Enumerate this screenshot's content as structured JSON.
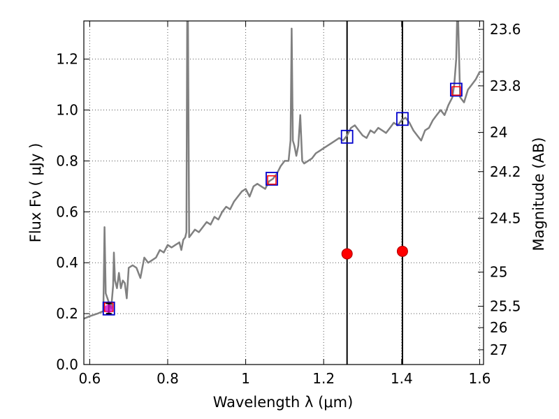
{
  "chart_data": {
    "type": "line",
    "title": "",
    "xlabel": "Wavelength  λ (μm)",
    "ylabel": "Flux  Fν  ( μJy )",
    "ylabel_right": "Magnitude (AB)",
    "xlim": [
      0.585,
      1.61
    ],
    "ylim": [
      0.0,
      1.35
    ],
    "grid": true,
    "x_ticks": [
      {
        "value": 0.6,
        "label": "0.6"
      },
      {
        "value": 0.8,
        "label": "0.8"
      },
      {
        "value": 1.0,
        "label": "1"
      },
      {
        "value": 1.2,
        "label": "1.2"
      },
      {
        "value": 1.4,
        "label": "1.4"
      },
      {
        "value": 1.6,
        "label": "1.6"
      }
    ],
    "y_ticks": [
      {
        "value": 0.0,
        "label": "0.0"
      },
      {
        "value": 0.2,
        "label": "0.2"
      },
      {
        "value": 0.4,
        "label": "0.4"
      },
      {
        "value": 0.6,
        "label": "0.6"
      },
      {
        "value": 0.8,
        "label": "0.8"
      },
      {
        "value": 1.0,
        "label": "1.0"
      },
      {
        "value": 1.2,
        "label": "1.2"
      }
    ],
    "right_ticks": [
      {
        "flux": 1.317,
        "label": "23.6"
      },
      {
        "flux": 1.095,
        "label": "23.8"
      },
      {
        "flux": 0.912,
        "label": "24"
      },
      {
        "flux": 0.758,
        "label": "24.2"
      },
      {
        "flux": 0.575,
        "label": "24.5"
      },
      {
        "flux": 0.363,
        "label": "25"
      },
      {
        "flux": 0.229,
        "label": "25.5"
      },
      {
        "flux": 0.145,
        "label": "26"
      },
      {
        "flux": 0.058,
        "label": "27"
      }
    ],
    "vertical_lines": [
      1.26,
      1.402
    ],
    "series": [
      {
        "kind": "spectrum",
        "color": "#808080",
        "points": [
          [
            0.585,
            0.18
          ],
          [
            0.6,
            0.19
          ],
          [
            0.62,
            0.2
          ],
          [
            0.635,
            0.21
          ],
          [
            0.638,
            0.54
          ],
          [
            0.641,
            0.28
          ],
          [
            0.65,
            0.24
          ],
          [
            0.655,
            0.22
          ],
          [
            0.66,
            0.31
          ],
          [
            0.662,
            0.44
          ],
          [
            0.665,
            0.33
          ],
          [
            0.67,
            0.3
          ],
          [
            0.675,
            0.36
          ],
          [
            0.68,
            0.3
          ],
          [
            0.685,
            0.33
          ],
          [
            0.69,
            0.32
          ],
          [
            0.695,
            0.26
          ],
          [
            0.7,
            0.38
          ],
          [
            0.71,
            0.39
          ],
          [
            0.72,
            0.38
          ],
          [
            0.73,
            0.34
          ],
          [
            0.74,
            0.42
          ],
          [
            0.75,
            0.4
          ],
          [
            0.76,
            0.41
          ],
          [
            0.77,
            0.42
          ],
          [
            0.78,
            0.45
          ],
          [
            0.79,
            0.44
          ],
          [
            0.8,
            0.47
          ],
          [
            0.81,
            0.46
          ],
          [
            0.82,
            0.47
          ],
          [
            0.83,
            0.48
          ],
          [
            0.835,
            0.45
          ],
          [
            0.84,
            0.49
          ],
          [
            0.845,
            0.5
          ],
          [
            0.848,
            0.52
          ],
          [
            0.85,
            1.35
          ],
          [
            0.852,
            1.35
          ],
          [
            0.855,
            0.5
          ],
          [
            0.86,
            0.51
          ],
          [
            0.87,
            0.53
          ],
          [
            0.88,
            0.52
          ],
          [
            0.89,
            0.54
          ],
          [
            0.9,
            0.56
          ],
          [
            0.91,
            0.55
          ],
          [
            0.92,
            0.58
          ],
          [
            0.93,
            0.57
          ],
          [
            0.94,
            0.6
          ],
          [
            0.95,
            0.62
          ],
          [
            0.96,
            0.61
          ],
          [
            0.97,
            0.64
          ],
          [
            0.98,
            0.66
          ],
          [
            0.99,
            0.68
          ],
          [
            1.0,
            0.69
          ],
          [
            1.01,
            0.66
          ],
          [
            1.02,
            0.7
          ],
          [
            1.03,
            0.71
          ],
          [
            1.04,
            0.7
          ],
          [
            1.05,
            0.69
          ],
          [
            1.06,
            0.72
          ],
          [
            1.07,
            0.73
          ],
          [
            1.08,
            0.75
          ],
          [
            1.09,
            0.78
          ],
          [
            1.1,
            0.8
          ],
          [
            1.11,
            0.8
          ],
          [
            1.115,
            0.88
          ],
          [
            1.118,
            1.32
          ],
          [
            1.121,
            0.88
          ],
          [
            1.125,
            0.86
          ],
          [
            1.13,
            0.82
          ],
          [
            1.135,
            0.86
          ],
          [
            1.14,
            0.98
          ],
          [
            1.145,
            0.8
          ],
          [
            1.15,
            0.79
          ],
          [
            1.16,
            0.8
          ],
          [
            1.17,
            0.81
          ],
          [
            1.18,
            0.83
          ],
          [
            1.19,
            0.84
          ],
          [
            1.2,
            0.85
          ],
          [
            1.21,
            0.86
          ],
          [
            1.22,
            0.87
          ],
          [
            1.23,
            0.88
          ],
          [
            1.24,
            0.89
          ],
          [
            1.25,
            0.88
          ],
          [
            1.26,
            0.9
          ],
          [
            1.27,
            0.93
          ],
          [
            1.28,
            0.94
          ],
          [
            1.29,
            0.92
          ],
          [
            1.3,
            0.9
          ],
          [
            1.31,
            0.89
          ],
          [
            1.32,
            0.92
          ],
          [
            1.33,
            0.91
          ],
          [
            1.34,
            0.93
          ],
          [
            1.35,
            0.92
          ],
          [
            1.36,
            0.91
          ],
          [
            1.37,
            0.93
          ],
          [
            1.38,
            0.95
          ],
          [
            1.39,
            0.94
          ],
          [
            1.4,
            0.96
          ],
          [
            1.41,
            0.97
          ],
          [
            1.42,
            0.95
          ],
          [
            1.43,
            0.92
          ],
          [
            1.44,
            0.9
          ],
          [
            1.45,
            0.88
          ],
          [
            1.46,
            0.92
          ],
          [
            1.47,
            0.93
          ],
          [
            1.48,
            0.96
          ],
          [
            1.49,
            0.98
          ],
          [
            1.5,
            1.0
          ],
          [
            1.51,
            0.98
          ],
          [
            1.52,
            1.02
          ],
          [
            1.53,
            1.05
          ],
          [
            1.535,
            1.1
          ],
          [
            1.54,
            1.2
          ],
          [
            1.542,
            1.35
          ],
          [
            1.545,
            1.35
          ],
          [
            1.55,
            1.05
          ],
          [
            1.56,
            1.03
          ],
          [
            1.57,
            1.08
          ],
          [
            1.58,
            1.1
          ],
          [
            1.59,
            1.12
          ],
          [
            1.6,
            1.15
          ],
          [
            1.61,
            1.15
          ]
        ]
      },
      {
        "kind": "photometry_squares_blue",
        "color": "#0000cc",
        "points": [
          [
            0.649,
            0.22
          ],
          [
            1.067,
            0.73
          ],
          [
            1.26,
            0.895
          ],
          [
            1.402,
            0.965
          ],
          [
            1.54,
            1.08
          ]
        ]
      },
      {
        "kind": "model_squares_red",
        "color": "#ff0000",
        "points": [
          [
            0.649,
            0.225
          ],
          [
            1.067,
            0.725
          ],
          [
            1.54,
            1.075
          ]
        ]
      },
      {
        "kind": "red_dots",
        "color": "#ff0000",
        "points": [
          [
            1.26,
            0.435
          ],
          [
            1.402,
            0.445
          ]
        ]
      },
      {
        "kind": "magenta_point_with_error",
        "color": "#cc00cc",
        "points": [
          [
            0.649,
            0.22,
            0.02
          ]
        ]
      }
    ]
  }
}
